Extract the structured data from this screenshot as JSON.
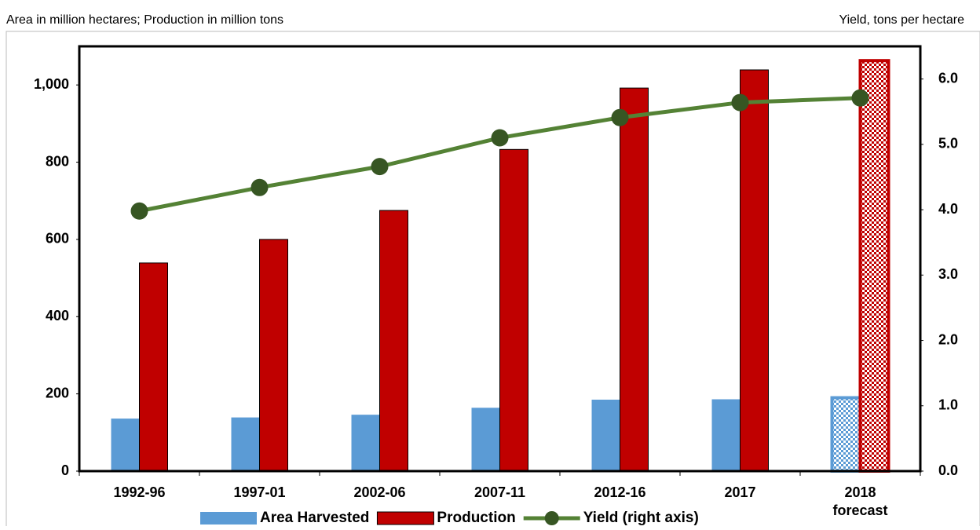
{
  "chart_data": {
    "type": "bar_line",
    "left_axis_label": "Area in million hectares; Production in million tons",
    "right_axis_label": "Yield, tons per hectare",
    "categories": [
      "1992-96",
      "1997-01",
      "2002-06",
      "2007-11",
      "2012-16",
      "2017",
      "2018\nforecast"
    ],
    "series": [
      {
        "name": "Area Harvested",
        "color": "#5b9bd5",
        "type": "bar",
        "values": [
          136,
          139,
          146,
          164,
          185,
          186,
          190
        ]
      },
      {
        "name": "Production",
        "color": "#c00000",
        "type": "bar",
        "values": [
          539,
          600,
          675,
          833,
          992,
          1039,
          1063
        ]
      },
      {
        "name": "Yield (right axis)",
        "color": "#548235",
        "type": "line",
        "axis": "y2",
        "values": [
          3.98,
          4.34,
          4.66,
          5.1,
          5.41,
          5.64,
          5.71
        ]
      }
    ],
    "forecast_index": 6,
    "ylim": [
      0,
      1100
    ],
    "yticks": [
      0,
      200,
      400,
      600,
      800,
      {
        "value": 1000,
        "label": "1,000"
      }
    ],
    "y2lim": [
      0,
      6.5
    ],
    "y2ticks": [
      {
        "value": 0,
        "label": "0.0"
      },
      {
        "value": 1,
        "label": "1.0"
      },
      {
        "value": 2,
        "label": "2.0"
      },
      {
        "value": 3,
        "label": "3.0"
      },
      {
        "value": 4,
        "label": "4.0"
      },
      {
        "value": 5,
        "label": "5.0"
      },
      {
        "value": 6,
        "label": "6.0"
      }
    ],
    "legend": "bottom"
  }
}
